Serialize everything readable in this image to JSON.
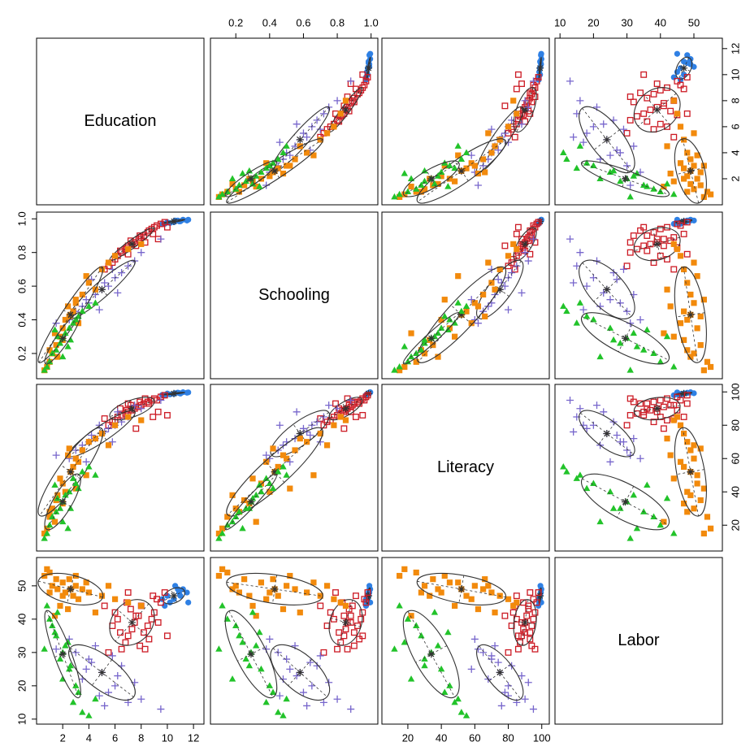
{
  "chart_data": {
    "type": "scatter-matrix",
    "variables": [
      {
        "name": "Education",
        "lim": [
          0,
          12.8
        ],
        "ticks": [
          2,
          4,
          6,
          8,
          10,
          12
        ]
      },
      {
        "name": "Schooling",
        "lim": [
          0.05,
          1.04
        ],
        "ticks": [
          0.2,
          0.4,
          0.6,
          0.8,
          {
            "value": 1,
            "label": "1.0"
          }
        ]
      },
      {
        "name": "Literacy",
        "lim": [
          4.5,
          104.5
        ],
        "ticks": [
          20,
          40,
          60,
          80,
          100
        ]
      },
      {
        "name": "Labor",
        "lim": [
          8.5,
          58.5
        ],
        "ticks": [
          10,
          20,
          30,
          40,
          50
        ]
      }
    ],
    "series": [
      {
        "color": "#2f80e4",
        "marker": "circle",
        "centroid": [
          10.5,
          0.985,
          99,
          47
        ],
        "points": [
          [
            11.5,
            0.99,
            99.5,
            48
          ],
          [
            11.0,
            0.985,
            99,
            47
          ],
          [
            10.8,
            0.99,
            99.6,
            49
          ],
          [
            10.5,
            0.98,
            98.8,
            46
          ],
          [
            10.2,
            0.975,
            98.5,
            45
          ],
          [
            10.0,
            0.98,
            99,
            47
          ],
          [
            9.8,
            0.97,
            98,
            44
          ],
          [
            11.2,
            0.995,
            99.8,
            49
          ],
          [
            10.6,
            0.99,
            99.2,
            50
          ],
          [
            9.6,
            0.97,
            98.2,
            46
          ],
          [
            10.9,
            0.985,
            99.3,
            48
          ],
          [
            11.6,
            0.995,
            99.7,
            45
          ]
        ]
      },
      {
        "color": "#cc1a24",
        "marker": "square-open",
        "centroid": [
          7.3,
          0.85,
          90,
          39
        ],
        "points": [
          [
            9.5,
            0.97,
            97,
            45
          ],
          [
            9.0,
            0.95,
            96,
            42
          ],
          [
            8.8,
            0.94,
            95,
            40
          ],
          [
            8.5,
            0.92,
            94,
            38
          ],
          [
            8.2,
            0.9,
            93,
            36
          ],
          [
            8.0,
            0.89,
            92,
            44
          ],
          [
            7.8,
            0.88,
            91,
            41
          ],
          [
            7.5,
            0.86,
            90,
            39
          ],
          [
            7.3,
            0.85,
            89,
            37
          ],
          [
            7.0,
            0.84,
            88,
            35
          ],
          [
            6.8,
            0.82,
            87,
            33
          ],
          [
            6.5,
            0.8,
            86,
            31
          ],
          [
            6.2,
            0.78,
            85,
            40
          ],
          [
            6.0,
            0.76,
            83,
            42
          ],
          [
            5.8,
            0.74,
            82,
            38
          ],
          [
            9.8,
            0.98,
            98,
            48
          ],
          [
            9.2,
            0.96,
            95,
            46
          ],
          [
            8.6,
            0.93,
            93,
            34
          ],
          [
            7.9,
            0.9,
            94,
            32
          ],
          [
            7.2,
            0.87,
            92,
            43
          ],
          [
            6.9,
            0.83,
            89,
            45
          ],
          [
            6.4,
            0.81,
            90,
            36
          ],
          [
            5.5,
            0.72,
            80,
            30
          ],
          [
            8.9,
            0.91,
            85,
            47
          ],
          [
            7.6,
            0.84,
            78,
            41
          ],
          [
            9.3,
            0.88,
            88,
            39
          ],
          [
            10.0,
            0.95,
            86,
            35
          ],
          [
            5.2,
            0.7,
            84,
            44
          ],
          [
            7.0,
            0.79,
            93,
            48
          ],
          [
            8.3,
            0.86,
            96,
            31
          ]
        ]
      },
      {
        "color": "#7766cc",
        "marker": "plus",
        "centroid": [
          5,
          0.58,
          75,
          24
        ],
        "points": [
          [
            5.0,
            0.58,
            75,
            24
          ],
          [
            4.0,
            0.5,
            70,
            28
          ],
          [
            3.0,
            0.45,
            65,
            30
          ],
          [
            6.0,
            0.65,
            80,
            20
          ],
          [
            7.0,
            0.72,
            85,
            15
          ],
          [
            5.5,
            0.6,
            78,
            18
          ],
          [
            4.5,
            0.55,
            72,
            32
          ],
          [
            6.5,
            0.68,
            82,
            26
          ],
          [
            3.5,
            0.48,
            68,
            22
          ],
          [
            8.0,
            0.8,
            90,
            16
          ],
          [
            2.5,
            0.4,
            60,
            34
          ],
          [
            5.2,
            0.62,
            76,
            14
          ],
          [
            6.2,
            0.56,
            88,
            23
          ],
          [
            4.2,
            0.64,
            74,
            27
          ],
          [
            7.5,
            0.75,
            92,
            21
          ],
          [
            3.8,
            0.52,
            58,
            25
          ],
          [
            5.8,
            0.7,
            70,
            29
          ],
          [
            1.5,
            0.38,
            62,
            31
          ],
          [
            9.5,
            0.88,
            95,
            13
          ],
          [
            4.8,
            0.46,
            80,
            17
          ]
        ]
      },
      {
        "color": "#f28a0c",
        "marker": "square",
        "centroid": [
          2.6,
          0.43,
          52,
          49
        ],
        "points": [
          [
            2.6,
            0.43,
            52,
            49
          ],
          [
            1.0,
            0.15,
            25,
            54
          ],
          [
            1.5,
            0.25,
            35,
            52
          ],
          [
            2.0,
            0.35,
            45,
            51
          ],
          [
            3.0,
            0.5,
            60,
            50
          ],
          [
            3.5,
            0.55,
            65,
            49
          ],
          [
            4.0,
            0.62,
            70,
            48
          ],
          [
            5.0,
            0.7,
            75,
            47
          ],
          [
            6.0,
            0.78,
            80,
            46
          ],
          [
            7.0,
            0.82,
            85,
            45
          ],
          [
            0.8,
            0.12,
            18,
            55
          ],
          [
            1.2,
            0.2,
            30,
            50
          ],
          [
            2.2,
            0.4,
            40,
            48
          ],
          [
            2.8,
            0.45,
            55,
            47
          ],
          [
            3.2,
            0.38,
            58,
            46
          ],
          [
            1.8,
            0.3,
            48,
            44
          ],
          [
            2.4,
            0.48,
            62,
            43
          ],
          [
            4.5,
            0.58,
            72,
            42
          ],
          [
            0.6,
            0.1,
            15,
            53
          ],
          [
            1.6,
            0.18,
            38,
            49
          ],
          [
            3.8,
            0.66,
            50,
            51
          ],
          [
            2.0,
            0.28,
            33,
            47
          ],
          [
            5.5,
            0.74,
            68,
            50
          ],
          [
            1.4,
            0.32,
            22,
            41
          ],
          [
            3.0,
            0.52,
            42,
            53
          ],
          [
            8.0,
            0.85,
            83,
            44
          ],
          [
            2.5,
            0.42,
            66,
            52
          ],
          [
            1.0,
            0.22,
            28,
            48
          ]
        ]
      },
      {
        "color": "#22c32a",
        "marker": "triangle",
        "centroid": [
          2,
          0.29,
          34,
          29.5
        ],
        "points": [
          [
            2.0,
            0.29,
            34,
            30
          ],
          [
            1.0,
            0.15,
            20,
            40
          ],
          [
            1.5,
            0.22,
            28,
            35
          ],
          [
            2.5,
            0.35,
            40,
            25
          ],
          [
            3.0,
            0.4,
            45,
            20
          ],
          [
            0.8,
            0.12,
            15,
            44
          ],
          [
            1.2,
            0.2,
            25,
            38
          ],
          [
            2.2,
            0.32,
            38,
            32
          ],
          [
            2.8,
            0.38,
            48,
            15
          ],
          [
            3.5,
            0.45,
            52,
            12
          ],
          [
            1.8,
            0.26,
            30,
            28
          ],
          [
            2.0,
            0.18,
            22,
            22
          ],
          [
            1.6,
            0.3,
            36,
            42
          ],
          [
            4.0,
            0.48,
            55,
            11
          ],
          [
            2.4,
            0.24,
            18,
            33
          ],
          [
            0.6,
            0.1,
            12,
            31
          ],
          [
            3.2,
            0.42,
            42,
            18
          ],
          [
            1.4,
            0.34,
            44,
            36
          ],
          [
            2.6,
            0.28,
            30,
            26
          ],
          [
            4.5,
            0.5,
            50,
            16
          ]
        ]
      }
    ]
  }
}
